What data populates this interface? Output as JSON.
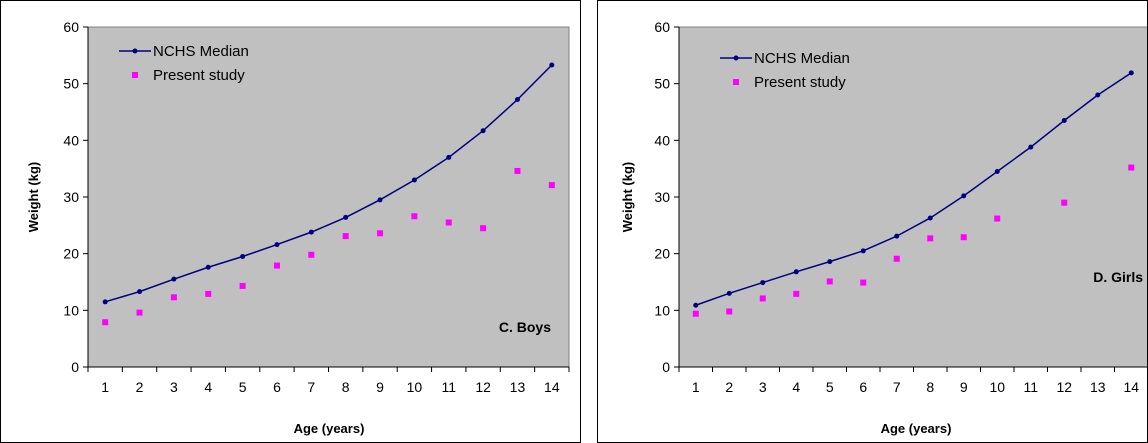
{
  "colors": {
    "plot_bg": "#c0c0c0",
    "median": "#000080",
    "study": "#ff00ff"
  },
  "chart_data": [
    {
      "type": "line",
      "panel_label": "C. Boys",
      "xlabel": "Age (years)",
      "ylabel": "Weight (kg)",
      "categories": [
        1,
        2,
        3,
        4,
        5,
        6,
        7,
        8,
        9,
        10,
        11,
        12,
        13,
        14
      ],
      "ylim": [
        0,
        60
      ],
      "yticks": [
        0,
        10,
        20,
        30,
        40,
        50,
        60
      ],
      "grid": false,
      "legend": "top-left",
      "series": [
        {
          "name": "NCHS Median",
          "style": "line-marker",
          "values": [
            11.5,
            13.3,
            15.5,
            17.6,
            19.5,
            21.6,
            23.8,
            26.4,
            29.5,
            33.0,
            37.0,
            41.7,
            47.2,
            53.3
          ]
        },
        {
          "name": "Present study",
          "style": "marker",
          "values": [
            7.9,
            9.6,
            12.3,
            12.9,
            14.3,
            17.9,
            19.8,
            23.1,
            23.6,
            26.6,
            25.5,
            24.5,
            34.6,
            32.1
          ]
        }
      ]
    },
    {
      "type": "line",
      "panel_label": "D. Girls",
      "xlabel": "Age (years)",
      "ylabel": "Weight (kg)",
      "categories": [
        1,
        2,
        3,
        4,
        5,
        6,
        7,
        8,
        9,
        10,
        11,
        12,
        13,
        14
      ],
      "ylim": [
        0,
        60
      ],
      "yticks": [
        0,
        10,
        20,
        30,
        40,
        50,
        60
      ],
      "grid": false,
      "legend": "top-left",
      "series": [
        {
          "name": "NCHS Median",
          "style": "line-marker",
          "values": [
            10.9,
            13.0,
            14.9,
            16.8,
            18.6,
            20.5,
            23.1,
            26.3,
            30.2,
            34.5,
            38.8,
            43.5,
            48.0,
            51.9
          ]
        },
        {
          "name": "Present study",
          "style": "marker",
          "values": [
            9.4,
            9.8,
            12.1,
            12.9,
            15.1,
            14.9,
            19.1,
            22.7,
            22.9,
            26.2,
            null,
            29.0,
            null,
            35.2
          ]
        }
      ]
    }
  ]
}
